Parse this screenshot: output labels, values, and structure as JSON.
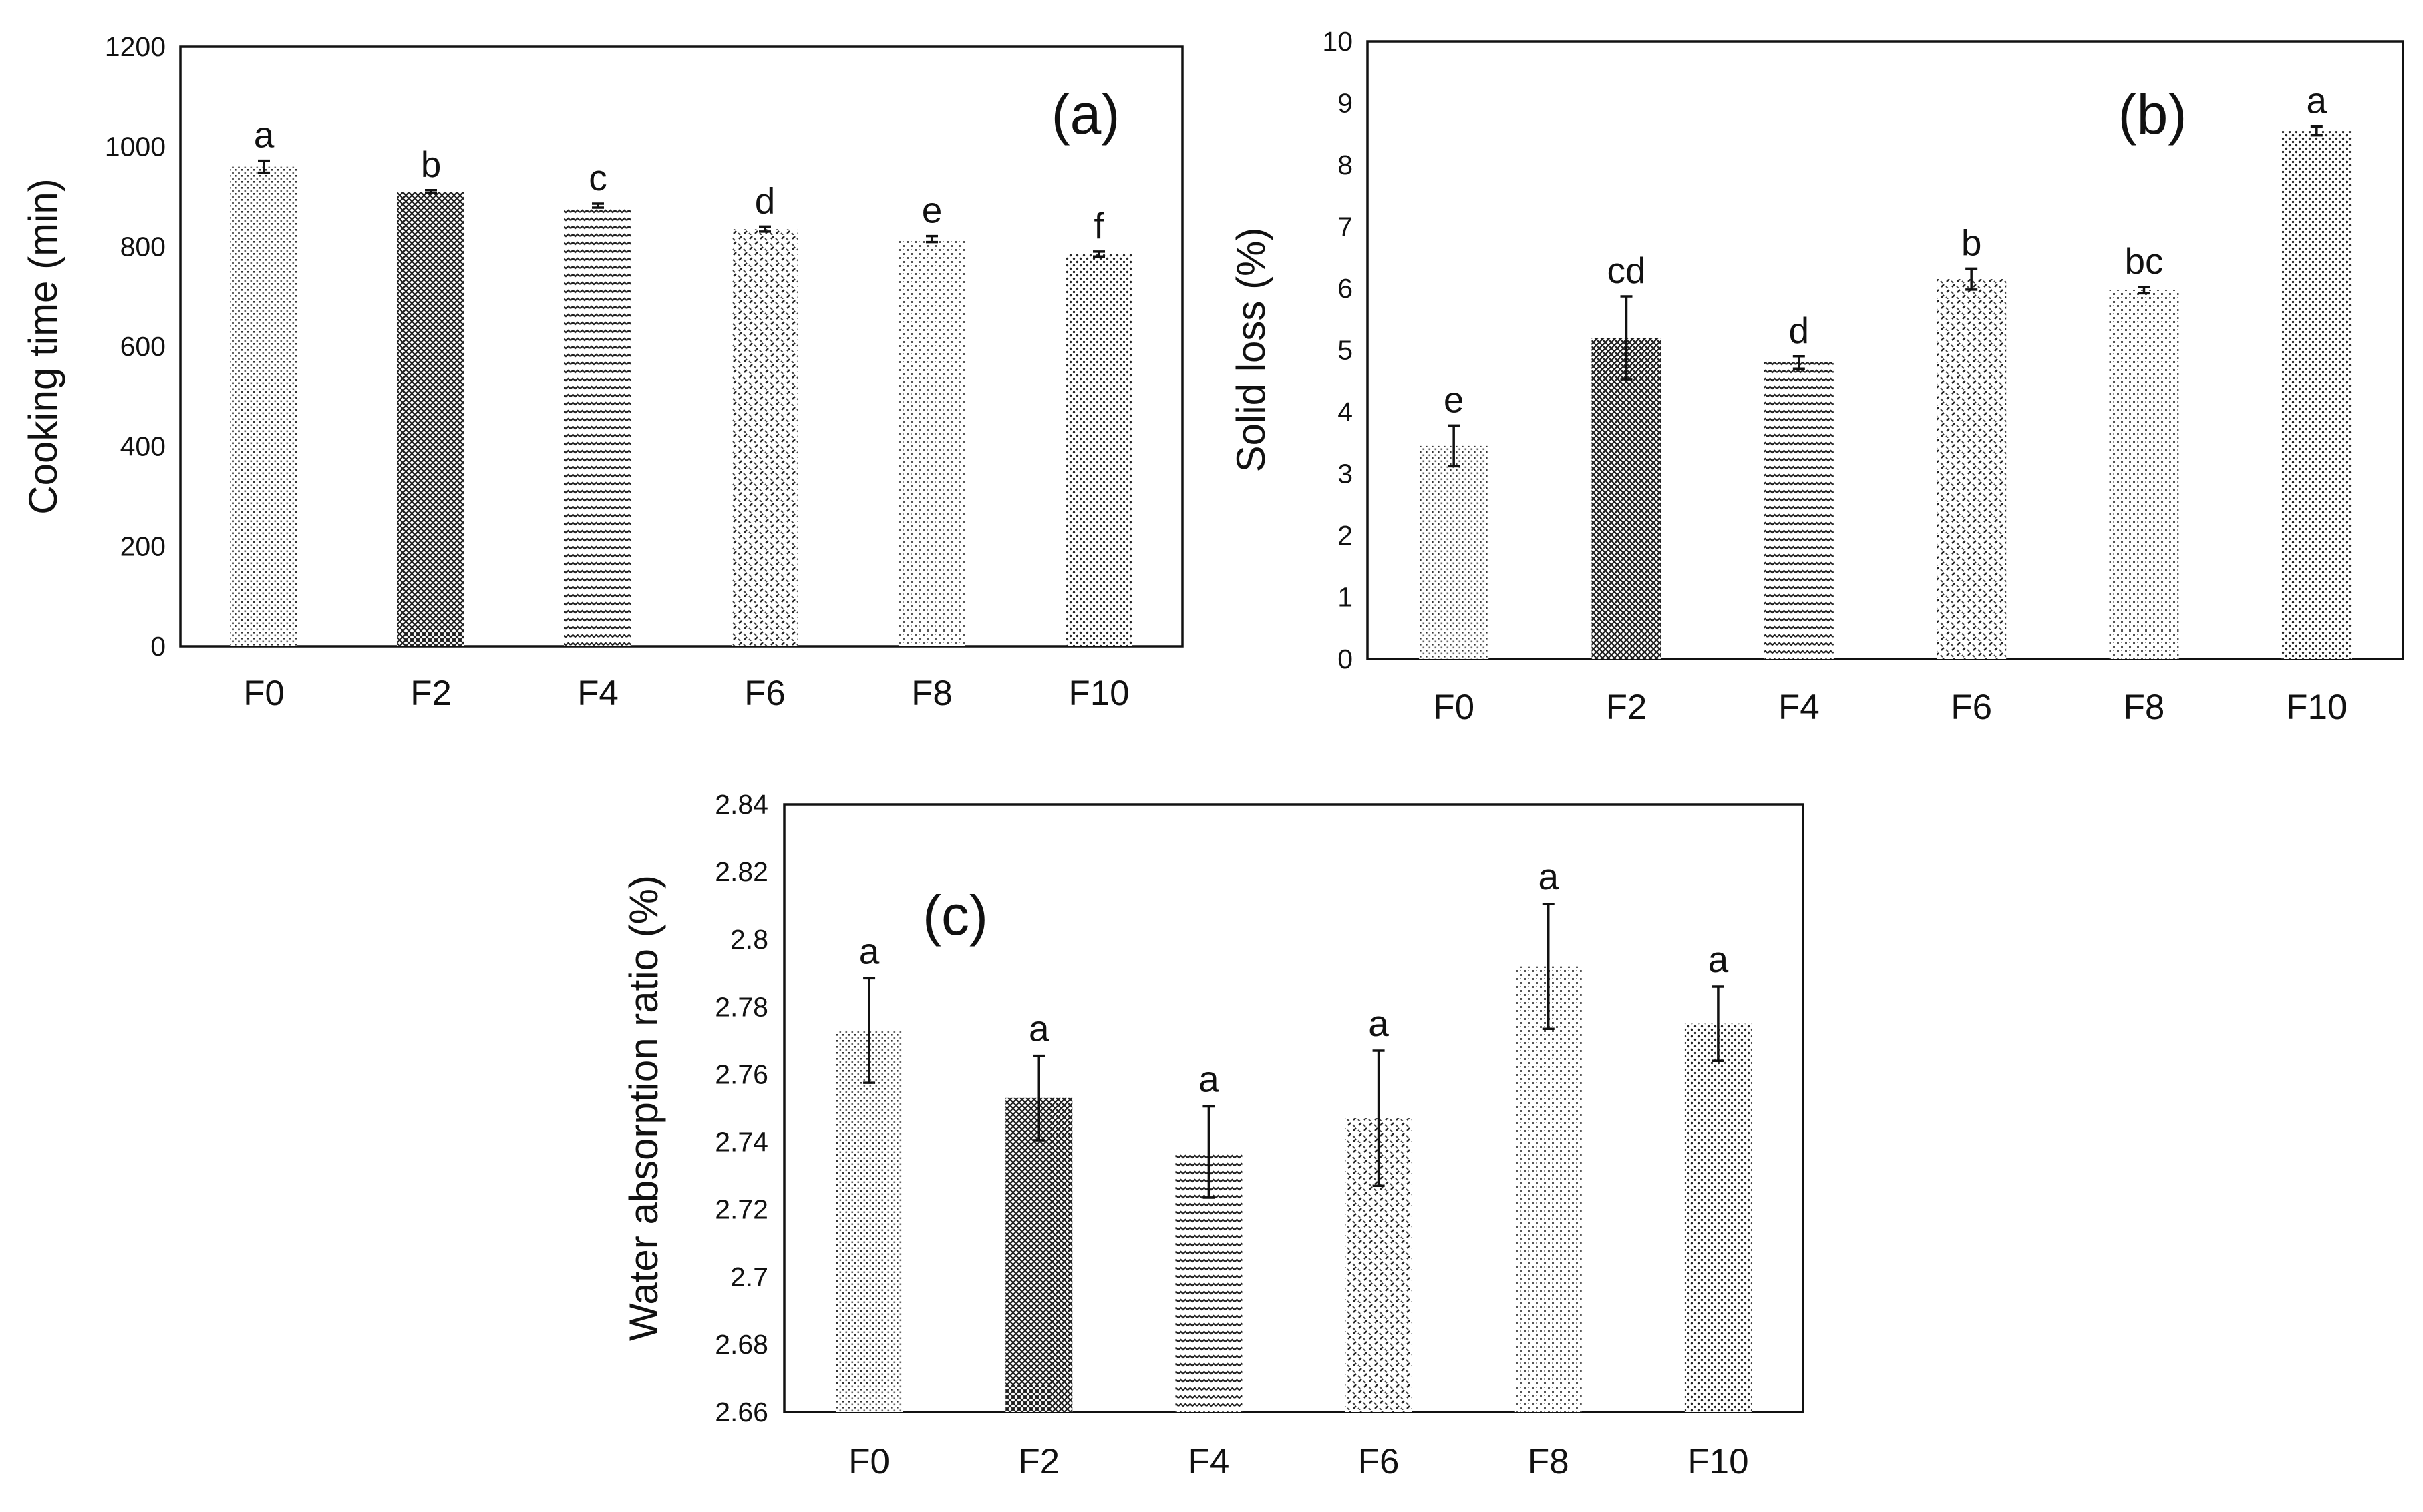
{
  "figure": {
    "panels": [
      "(a)",
      "(b)",
      "(c)"
    ]
  },
  "chart_data": [
    {
      "type": "bar",
      "panel_label": "(a)",
      "title": "",
      "xlabel": "",
      "ylabel": "Cooking time (min)",
      "ylim": [
        0,
        1200
      ],
      "yticks": [
        0,
        200,
        400,
        600,
        800,
        1000,
        1200
      ],
      "categories": [
        "F0",
        "F2",
        "F4",
        "F6",
        "F8",
        "F10"
      ],
      "values": [
        960,
        910,
        882,
        835,
        815,
        785
      ],
      "errors": [
        12,
        3,
        4,
        5,
        6,
        5
      ],
      "significance": [
        "a",
        "b",
        "c",
        "d",
        "e",
        "f"
      ],
      "patterns": [
        "p0",
        "p1",
        "p2",
        "p3",
        "p4",
        "p5"
      ]
    },
    {
      "type": "bar",
      "panel_label": "(b)",
      "title": "",
      "xlabel": "",
      "ylabel": "Solid loss (%)",
      "ylim": [
        0,
        10
      ],
      "yticks": [
        0,
        1,
        2,
        3,
        4,
        5,
        6,
        7,
        8,
        9,
        10
      ],
      "categories": [
        "F0",
        "F2",
        "F4",
        "F6",
        "F8",
        "F10"
      ],
      "values": [
        3.45,
        5.2,
        4.8,
        6.15,
        5.97,
        8.55
      ],
      "errors": [
        0.33,
        0.67,
        0.1,
        0.17,
        0.05,
        0.07
      ],
      "significance": [
        "e",
        "cd",
        "d",
        "b",
        "bc",
        "a"
      ],
      "patterns": [
        "p0",
        "p1",
        "p2",
        "p3",
        "p4",
        "p5"
      ]
    },
    {
      "type": "bar",
      "panel_label": "(c)",
      "title": "",
      "xlabel": "",
      "ylabel": "Water absorption ratio (%)",
      "ylim": [
        2.66,
        2.84
      ],
      "yticks": [
        2.66,
        2.68,
        2.7,
        2.72,
        2.74,
        2.76,
        2.78,
        2.8,
        2.82,
        2.84
      ],
      "ytick_labels": [
        "2.66",
        "2.68",
        "2.7",
        "2.72",
        "2.74",
        "2.76",
        "2.78",
        "2.8",
        "2.82",
        "2.84"
      ],
      "categories": [
        "F0",
        "F2",
        "F4",
        "F6",
        "F8",
        "F10"
      ],
      "values": [
        2.773,
        2.753,
        2.737,
        2.747,
        2.792,
        2.775
      ],
      "errors": [
        0.0155,
        0.0125,
        0.0135,
        0.02,
        0.0185,
        0.011
      ],
      "significance": [
        "a",
        "a",
        "a",
        "a",
        "a",
        "a"
      ],
      "patterns": [
        "p0",
        "p1",
        "p2",
        "p3",
        "p4",
        "p5"
      ]
    }
  ]
}
